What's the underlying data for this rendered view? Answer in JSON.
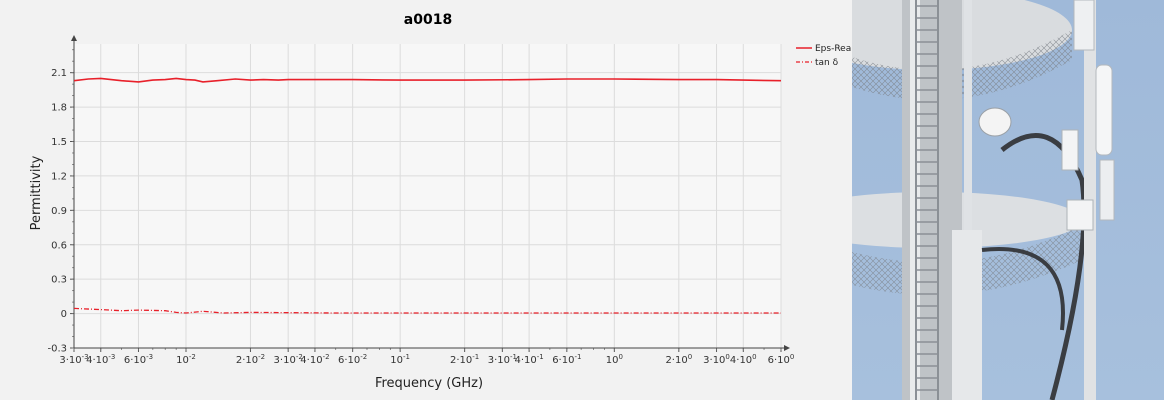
{
  "chart_data": {
    "type": "line",
    "title": "a0018",
    "xlabel": "Frequency (GHz)",
    "ylabel": "Permittivity",
    "x_scale": "log",
    "xlim": [
      0.003,
      6
    ],
    "ylim": [
      -0.3,
      2.35
    ],
    "grid": true,
    "legend_position": "top-right",
    "y_ticks": [
      -0.3,
      0,
      0.3,
      0.6,
      0.9,
      1.2,
      1.5,
      1.8,
      2.1
    ],
    "y_tick_labels": [
      "-0.3",
      "0",
      "0.3",
      "0.6",
      "0.9",
      "1.2",
      "1.5",
      "1.8",
      "2.1"
    ],
    "x_ticks": [
      0.003,
      0.004,
      0.006,
      0.01,
      0.02,
      0.03,
      0.04,
      0.06,
      0.1,
      0.2,
      0.3,
      0.4,
      0.6,
      1,
      2,
      3,
      4,
      6
    ],
    "x_tick_labels": [
      {
        "base": "3·10",
        "exp": "-3"
      },
      {
        "base": "4·10",
        "exp": "-3"
      },
      {
        "base": "6·10",
        "exp": "-3"
      },
      {
        "base": "10",
        "exp": "-2"
      },
      {
        "base": "2·10",
        "exp": "-2"
      },
      {
        "base": "3·10",
        "exp": "-2"
      },
      {
        "base": "4·10",
        "exp": "-2"
      },
      {
        "base": "6·10",
        "exp": "-2"
      },
      {
        "base": "10",
        "exp": "-1"
      },
      {
        "base": "2·10",
        "exp": "-1"
      },
      {
        "base": "3·10",
        "exp": "-1"
      },
      {
        "base": "4·10",
        "exp": "-1"
      },
      {
        "base": "6·10",
        "exp": "-1"
      },
      {
        "base": "10",
        "exp": "0"
      },
      {
        "base": "2·10",
        "exp": "0"
      },
      {
        "base": "3·10",
        "exp": "0"
      },
      {
        "base": "4·10",
        "exp": "0"
      },
      {
        "base": "6·10",
        "exp": "0"
      }
    ],
    "series": [
      {
        "name": "Eps-Real",
        "style": "solid",
        "color": "#e8202a",
        "x": [
          0.003,
          0.0035,
          0.004,
          0.005,
          0.006,
          0.007,
          0.008,
          0.009,
          0.01,
          0.011,
          0.012,
          0.014,
          0.017,
          0.02,
          0.023,
          0.027,
          0.03,
          0.04,
          0.06,
          0.1,
          0.2,
          0.4,
          0.6,
          1,
          2,
          3,
          4,
          6
        ],
        "y": [
          2.03,
          2.045,
          2.05,
          2.03,
          2.02,
          2.035,
          2.04,
          2.05,
          2.04,
          2.035,
          2.02,
          2.03,
          2.045,
          2.035,
          2.04,
          2.035,
          2.04,
          2.04,
          2.04,
          2.035,
          2.035,
          2.04,
          2.045,
          2.045,
          2.04,
          2.04,
          2.035,
          2.03
        ]
      },
      {
        "name": "tan δ",
        "style": "dash-dot",
        "color": "#e8202a",
        "x": [
          0.003,
          0.004,
          0.005,
          0.006,
          0.008,
          0.009,
          0.01,
          0.012,
          0.015,
          0.02,
          0.05,
          0.1,
          1,
          6
        ],
        "y": [
          0.045,
          0.035,
          0.025,
          0.03,
          0.025,
          0.01,
          0.005,
          0.02,
          0.005,
          0.01,
          0.005,
          0.005,
          0.005,
          0.005
        ]
      }
    ]
  }
}
